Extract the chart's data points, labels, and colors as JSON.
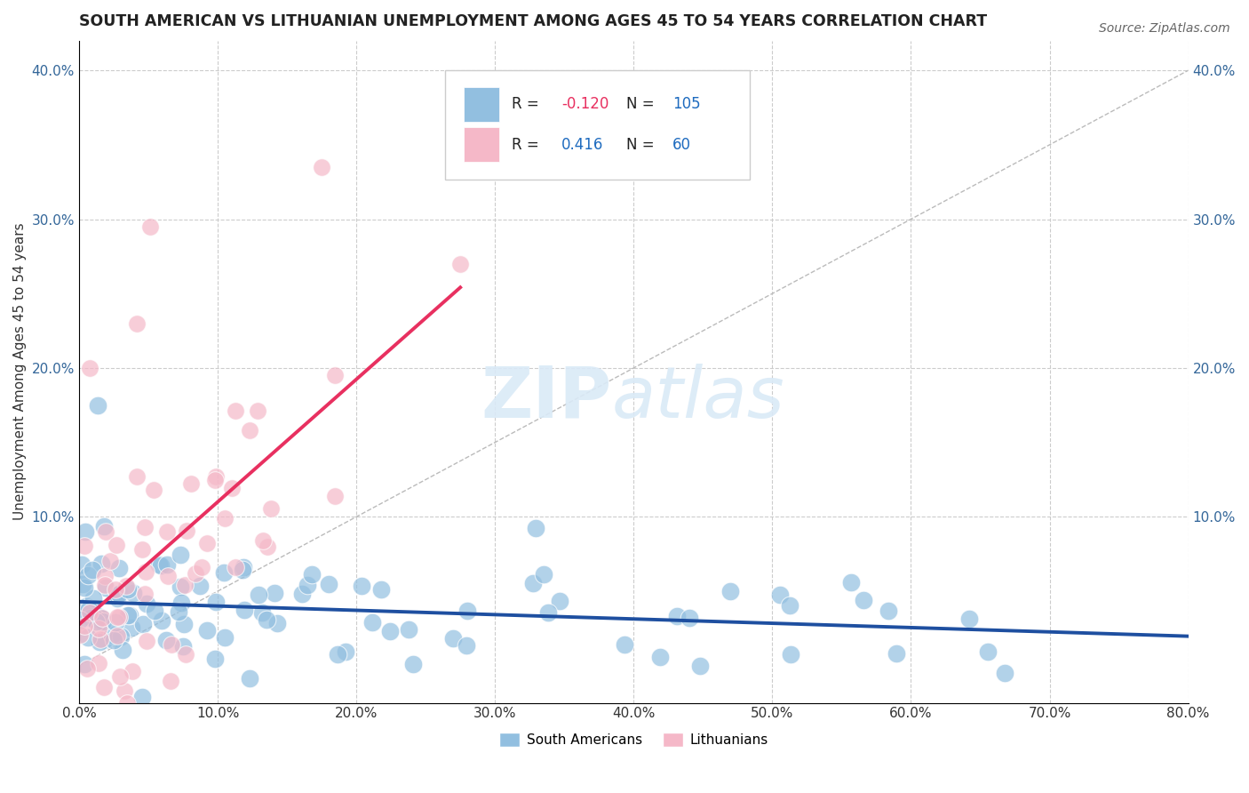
{
  "title": "SOUTH AMERICAN VS LITHUANIAN UNEMPLOYMENT AMONG AGES 45 TO 54 YEARS CORRELATION CHART",
  "source": "Source: ZipAtlas.com",
  "ylabel": "Unemployment Among Ages 45 to 54 years",
  "xlim": [
    0.0,
    0.8
  ],
  "ylim": [
    -0.025,
    0.42
  ],
  "xticks": [
    0.0,
    0.1,
    0.2,
    0.3,
    0.4,
    0.5,
    0.6,
    0.7,
    0.8
  ],
  "yticks": [
    0.0,
    0.1,
    0.2,
    0.3,
    0.4
  ],
  "ytick_labels_left": [
    "",
    "10.0%",
    "20.0%",
    "30.0%",
    "40.0%"
  ],
  "ytick_labels_right": [
    "",
    "10.0%",
    "20.0%",
    "30.0%",
    "40.0%"
  ],
  "xtick_labels": [
    "0.0%",
    "10.0%",
    "20.0%",
    "30.0%",
    "40.0%",
    "50.0%",
    "60.0%",
    "70.0%",
    "80.0%"
  ],
  "color_blue": "#92bfe0",
  "color_pink": "#f5b8c8",
  "trend_blue": "#1e4fa0",
  "trend_pink": "#e83060",
  "text_color_r": "#e83060",
  "text_color_n": "#1e6bbf",
  "R_blue": -0.12,
  "N_blue": 105,
  "R_pink": 0.416,
  "N_pink": 60,
  "legend_labels": [
    "South Americans",
    "Lithuanians"
  ],
  "background": "#ffffff",
  "grid_color": "#cccccc",
  "seed": 42
}
